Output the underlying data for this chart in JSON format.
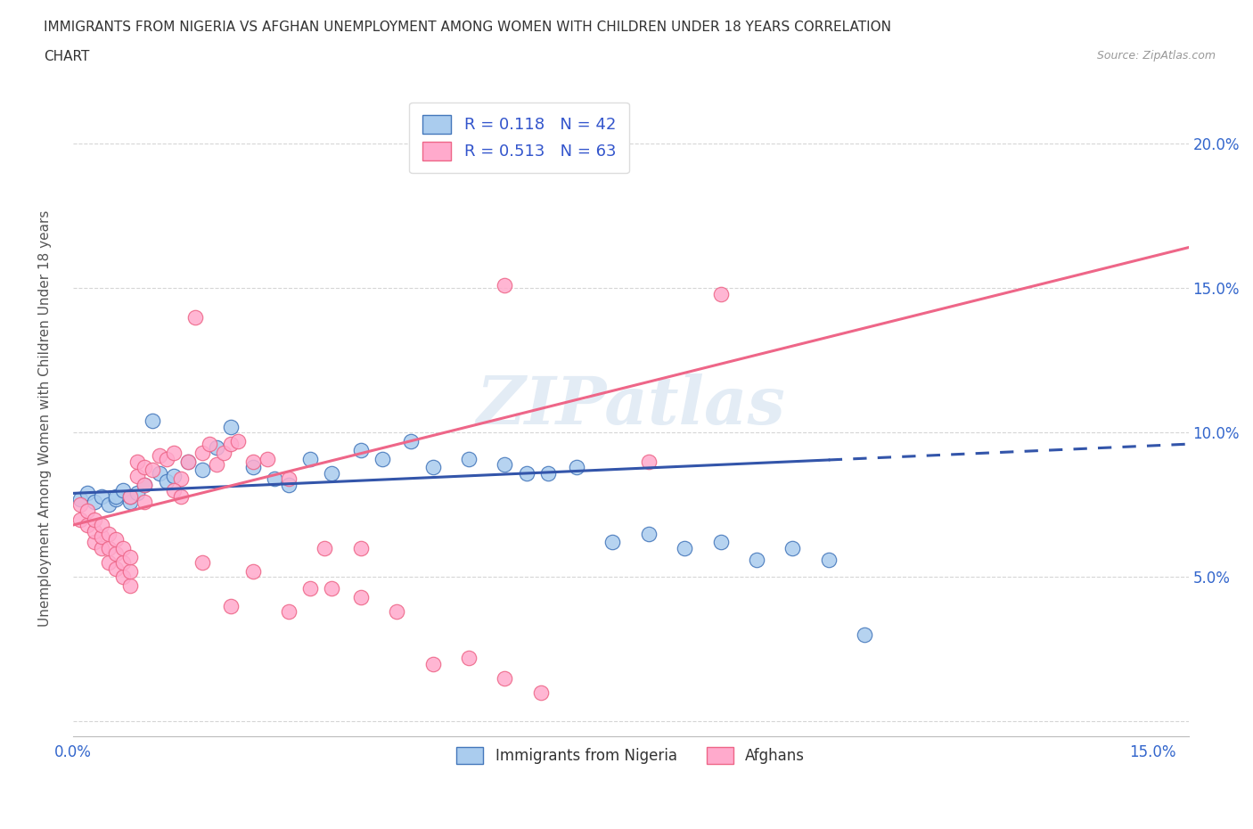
{
  "title_line1": "IMMIGRANTS FROM NIGERIA VS AFGHAN UNEMPLOYMENT AMONG WOMEN WITH CHILDREN UNDER 18 YEARS CORRELATION",
  "title_line2": "CHART",
  "source_text": "Source: ZipAtlas.com",
  "ylabel": "Unemployment Among Women with Children Under 18 years",
  "xlim": [
    0.0,
    0.155
  ],
  "ylim": [
    -0.005,
    0.215
  ],
  "ytick_positions": [
    0.0,
    0.05,
    0.1,
    0.15,
    0.2
  ],
  "ytick_labels": [
    "",
    "5.0%",
    "10.0%",
    "15.0%",
    "20.0%"
  ],
  "xtick_positions": [
    0.0,
    0.03,
    0.06,
    0.09,
    0.12,
    0.15
  ],
  "xtick_labels": [
    "0.0%",
    "",
    "",
    "",
    "",
    "15.0%"
  ],
  "legend_r_nigeria": "0.118",
  "legend_n_nigeria": "42",
  "legend_r_afghan": "0.513",
  "legend_n_afghan": "63",
  "color_nigeria_fill": "#AACCEE",
  "color_nigeria_edge": "#4477BB",
  "color_afghan_fill": "#FFAACC",
  "color_afghan_edge": "#EE6688",
  "color_trendline_nigeria": "#3355AA",
  "color_trendline_afghan": "#EE6688",
  "watermark": "ZIPatlas",
  "nigeria_x": [
    0.001,
    0.002,
    0.003,
    0.004,
    0.005,
    0.006,
    0.006,
    0.007,
    0.008,
    0.008,
    0.009,
    0.01,
    0.011,
    0.012,
    0.013,
    0.014,
    0.016,
    0.018,
    0.02,
    0.022,
    0.025,
    0.028,
    0.03,
    0.033,
    0.036,
    0.04,
    0.043,
    0.047,
    0.05,
    0.055,
    0.06,
    0.063,
    0.066,
    0.07,
    0.075,
    0.08,
    0.085,
    0.09,
    0.095,
    0.1,
    0.105,
    0.11
  ],
  "nigeria_y": [
    0.077,
    0.079,
    0.076,
    0.078,
    0.075,
    0.077,
    0.078,
    0.08,
    0.076,
    0.078,
    0.079,
    0.082,
    0.104,
    0.086,
    0.083,
    0.085,
    0.09,
    0.087,
    0.095,
    0.102,
    0.088,
    0.084,
    0.082,
    0.091,
    0.086,
    0.094,
    0.091,
    0.097,
    0.088,
    0.091,
    0.089,
    0.086,
    0.086,
    0.088,
    0.062,
    0.065,
    0.06,
    0.062,
    0.056,
    0.06,
    0.056,
    0.03
  ],
  "afghan_x": [
    0.001,
    0.001,
    0.002,
    0.002,
    0.003,
    0.003,
    0.003,
    0.004,
    0.004,
    0.004,
    0.005,
    0.005,
    0.005,
    0.006,
    0.006,
    0.006,
    0.007,
    0.007,
    0.007,
    0.008,
    0.008,
    0.008,
    0.009,
    0.009,
    0.01,
    0.01,
    0.011,
    0.012,
    0.013,
    0.014,
    0.015,
    0.016,
    0.017,
    0.018,
    0.019,
    0.02,
    0.021,
    0.022,
    0.023,
    0.025,
    0.027,
    0.03,
    0.033,
    0.036,
    0.04,
    0.045,
    0.055,
    0.065,
    0.08,
    0.09,
    0.01,
    0.014,
    0.018,
    0.022,
    0.03,
    0.035,
    0.025,
    0.04,
    0.05,
    0.06,
    0.008,
    0.015,
    0.06
  ],
  "afghan_y": [
    0.075,
    0.07,
    0.068,
    0.073,
    0.062,
    0.066,
    0.07,
    0.06,
    0.064,
    0.068,
    0.055,
    0.06,
    0.065,
    0.053,
    0.058,
    0.063,
    0.05,
    0.055,
    0.06,
    0.047,
    0.052,
    0.057,
    0.085,
    0.09,
    0.082,
    0.088,
    0.087,
    0.092,
    0.091,
    0.093,
    0.084,
    0.09,
    0.14,
    0.093,
    0.096,
    0.089,
    0.093,
    0.096,
    0.097,
    0.09,
    0.091,
    0.084,
    0.046,
    0.046,
    0.043,
    0.038,
    0.022,
    0.01,
    0.09,
    0.148,
    0.076,
    0.08,
    0.055,
    0.04,
    0.038,
    0.06,
    0.052,
    0.06,
    0.02,
    0.015,
    0.078,
    0.078,
    0.151
  ]
}
